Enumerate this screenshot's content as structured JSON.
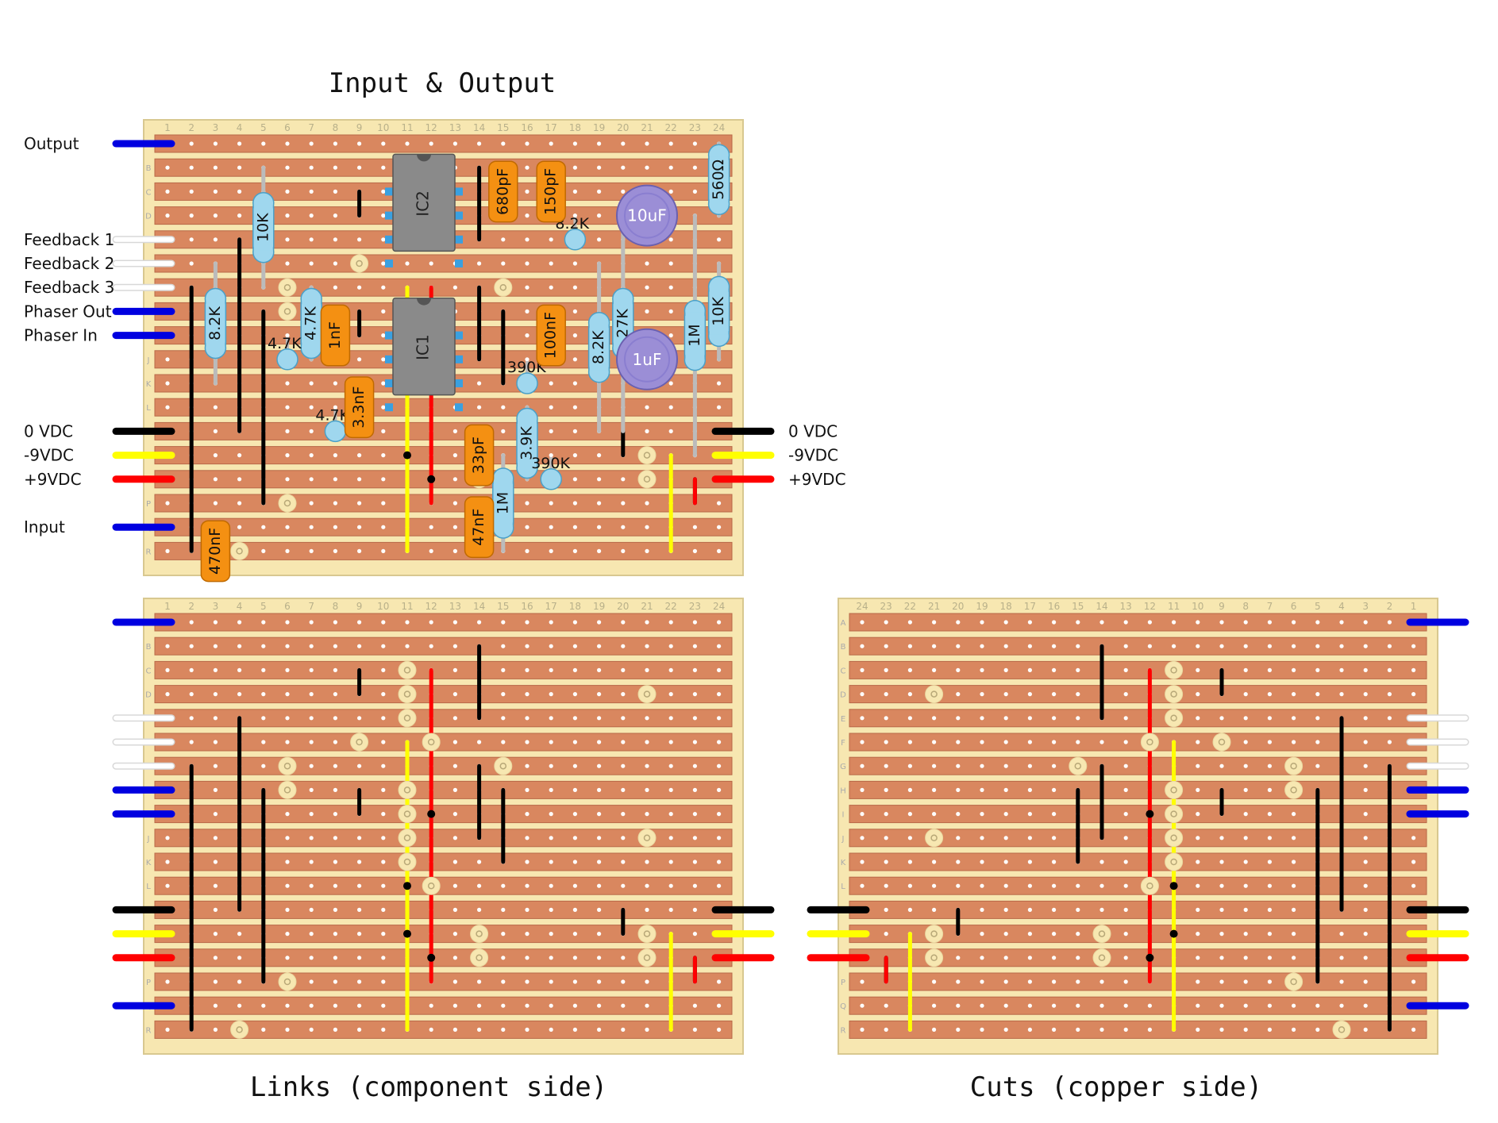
{
  "titles": {
    "main": "Input & Output",
    "links": "Links (component side)",
    "cuts": "Cuts (copper side)"
  },
  "columns": [
    "1",
    "2",
    "3",
    "4",
    "5",
    "6",
    "7",
    "8",
    "9",
    "10",
    "11",
    "12",
    "13",
    "14",
    "15",
    "16",
    "17",
    "18",
    "19",
    "20",
    "21",
    "22",
    "23",
    "24"
  ],
  "rows": [
    "A",
    "B",
    "C",
    "D",
    "E",
    "F",
    "G",
    "H",
    "I",
    "J",
    "K",
    "L",
    "M",
    "N",
    "O",
    "P",
    "Q",
    "R"
  ],
  "wires_left": [
    {
      "label": "Output",
      "row": 0,
      "color": "blue"
    },
    {
      "label": "Feedback 1",
      "row": 4,
      "color": "white"
    },
    {
      "label": "Feedback 2",
      "row": 5,
      "color": "white"
    },
    {
      "label": "Feedback 3",
      "row": 6,
      "color": "white"
    },
    {
      "label": "Phaser Out",
      "row": 7,
      "color": "blue"
    },
    {
      "label": "Phaser In",
      "row": 8,
      "color": "blue"
    },
    {
      "label": "0 VDC",
      "row": 12,
      "color": "black"
    },
    {
      "label": "-9VDC",
      "row": 13,
      "color": "yellow"
    },
    {
      "label": "+9VDC",
      "row": 14,
      "color": "red"
    },
    {
      "label": "Input",
      "row": 16,
      "color": "blue"
    }
  ],
  "wires_right": [
    {
      "label": "0 VDC",
      "row": 12,
      "color": "black"
    },
    {
      "label": "-9VDC",
      "row": 13,
      "color": "yellow"
    },
    {
      "label": "+9VDC",
      "row": 14,
      "color": "red"
    }
  ],
  "ics": [
    {
      "label": "IC2",
      "col": 11,
      "row": 2
    },
    {
      "label": "IC1",
      "col": 11,
      "row": 8
    }
  ],
  "resistors": [
    {
      "label": "10K",
      "col": 5,
      "r1": 1,
      "r2": 6
    },
    {
      "label": "8.2K",
      "col": 3,
      "r1": 5,
      "r2": 10
    },
    {
      "label": "4.7K",
      "col": 7,
      "r1": 6,
      "r2": 9
    },
    {
      "label": "1M",
      "col": 15,
      "r1": 13,
      "r2": 17
    },
    {
      "label": "3.9K",
      "col": 16,
      "r1": 11,
      "r2": 14
    },
    {
      "label": "8.2K",
      "col": 19,
      "r1": 5,
      "r2": 12
    },
    {
      "label": "27K",
      "col": 20,
      "r1": 3,
      "r2": 12
    },
    {
      "label": "1M",
      "col": 23,
      "r1": 3,
      "r2": 13
    },
    {
      "label": "10K",
      "col": 24,
      "r1": 5,
      "r2": 9
    },
    {
      "label": "560Ω",
      "col": 24,
      "r1": 0,
      "r2": 3
    }
  ],
  "standing_resistors": [
    {
      "label": "8.2K",
      "col": 18,
      "row": 4
    },
    {
      "label": "4.7K",
      "col": 6,
      "row": 9
    },
    {
      "label": "390K",
      "col": 16,
      "row": 10
    },
    {
      "label": "4.7K",
      "col": 8,
      "row": 12
    },
    {
      "label": "390K",
      "col": 17,
      "row": 14
    }
  ],
  "caps": [
    {
      "label": "680pF",
      "col": 15,
      "r1": 1,
      "r2": 3
    },
    {
      "label": "150pF",
      "col": 17,
      "r1": 1,
      "r2": 3
    },
    {
      "label": "1nF",
      "col": 8,
      "r1": 7,
      "r2": 9
    },
    {
      "label": "100nF",
      "col": 17,
      "r1": 7,
      "r2": 9
    },
    {
      "label": "3.3nF",
      "col": 9,
      "r1": 10,
      "r2": 12
    },
    {
      "label": "33pF",
      "col": 14,
      "r1": 12,
      "r2": 14
    },
    {
      "label": "47nF",
      "col": 14,
      "r1": 15,
      "r2": 17
    },
    {
      "label": "470nF",
      "col": 3,
      "r1": 16,
      "r2": 18
    }
  ],
  "electrolytics": [
    {
      "label": "10uF",
      "col": 21,
      "row": 3
    },
    {
      "label": "1uF",
      "col": 21,
      "row": 9
    }
  ],
  "colors": {
    "board": "#f7e7b1",
    "strip": "#d9875f",
    "strip_edge": "#b86848",
    "blue": "#0000e0",
    "white": "#ffffff",
    "black": "#000000",
    "yellow": "#ffff00",
    "red": "#ff0000",
    "resistor": "#9fd7ee",
    "cap": "#f49012",
    "electrolytic": "#9b8ed6",
    "ic": "#8a8a8a"
  }
}
